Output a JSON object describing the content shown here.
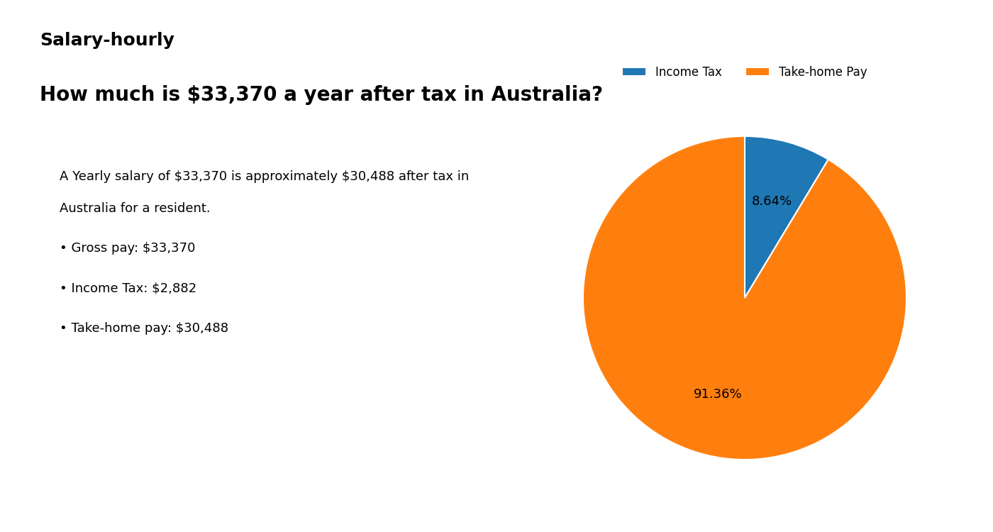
{
  "chart_data": {
    "type": "pie",
    "title": "How much is $33,370 a year after tax in Australia?",
    "categories": [
      "Income Tax",
      "Take-home Pay"
    ],
    "values": [
      8.64,
      91.36
    ],
    "value_labels": [
      "8.64%",
      "91.36%"
    ],
    "data_labels": true,
    "legend": "upper center",
    "annotations": [
      "Salary-hourly",
      "A Yearly salary of $33,370 is approximately $30,488 after tax in",
      "Australia for a resident.",
      "• Gross pay: $33,370",
      "• Income Tax: $2,882",
      "• Take-home pay: $30,488"
    ]
  }
}
